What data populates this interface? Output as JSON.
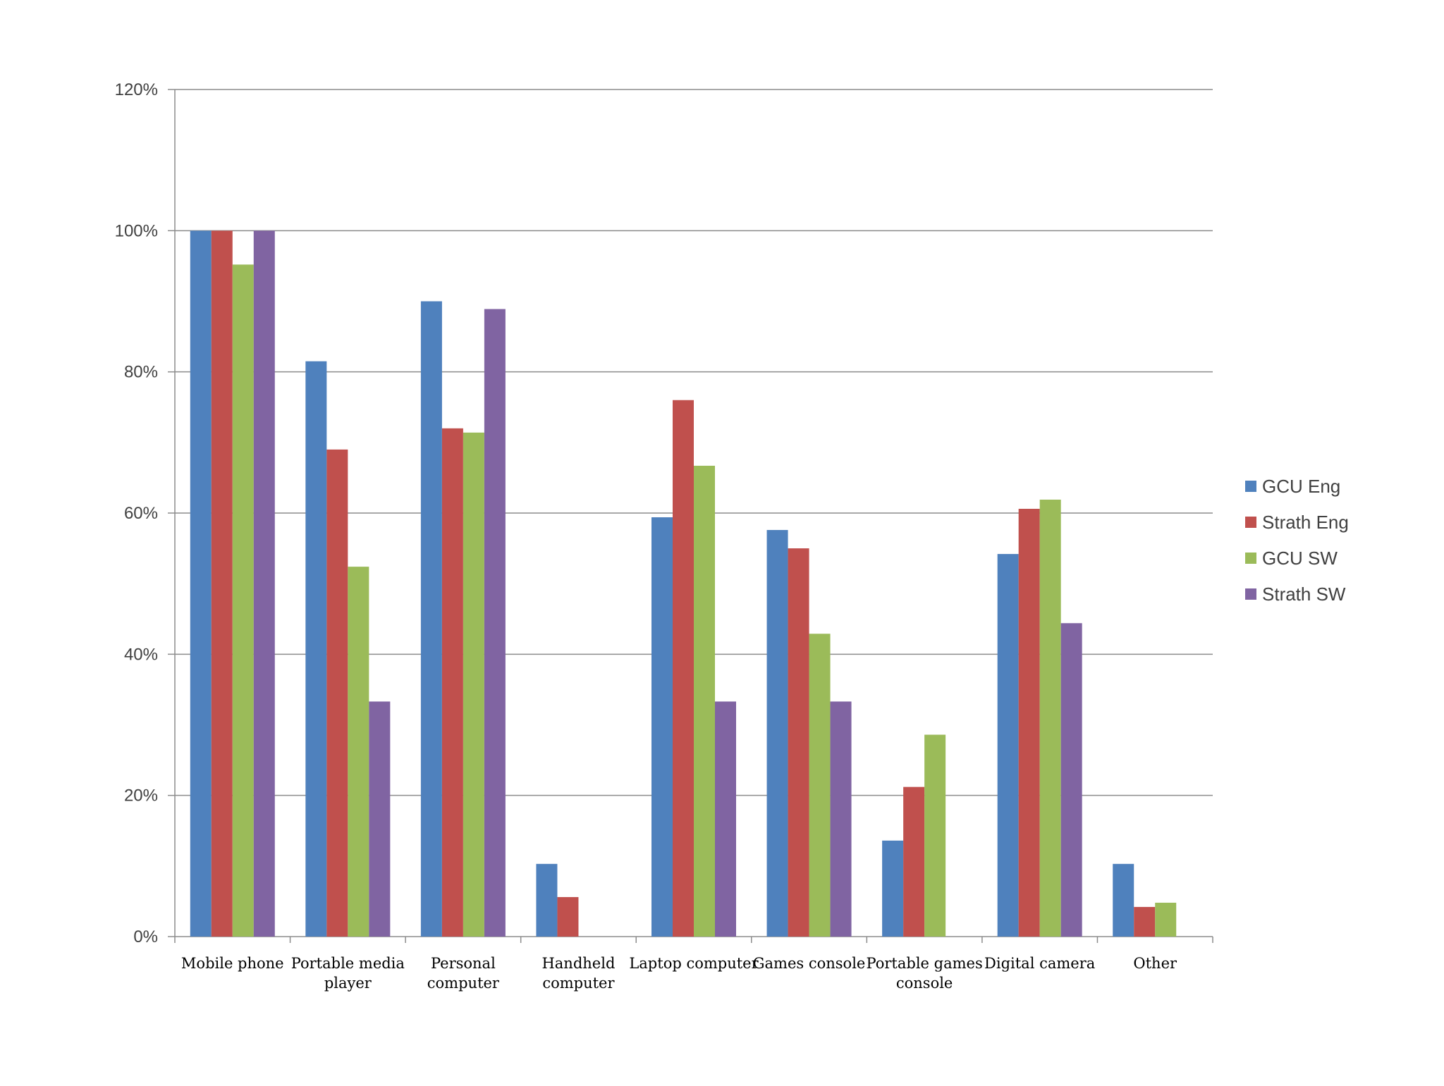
{
  "chart_data": {
    "type": "bar",
    "categories": [
      [
        "Mobile phone"
      ],
      [
        "Portable media",
        "player"
      ],
      [
        "Personal",
        "computer"
      ],
      [
        "Handheld",
        "computer"
      ],
      [
        "Laptop computer"
      ],
      [
        "Games console"
      ],
      [
        "Portable games",
        "console"
      ],
      [
        "Digital camera"
      ],
      [
        "Other"
      ]
    ],
    "series": [
      {
        "name": "GCU Eng",
        "color": "#4F81BD",
        "values": [
          100,
          81.5,
          90,
          10.3,
          59.4,
          57.6,
          13.6,
          54.2,
          10.3
        ]
      },
      {
        "name": "Strath Eng",
        "color": "#C0504D",
        "values": [
          100,
          69,
          72,
          5.6,
          76,
          55,
          21.2,
          60.6,
          4.2
        ]
      },
      {
        "name": "GCU SW",
        "color": "#9BBB59",
        "values": [
          95.2,
          52.4,
          71.4,
          0,
          66.7,
          42.9,
          28.6,
          61.9,
          4.8
        ]
      },
      {
        "name": "Strath SW",
        "color": "#8064A2",
        "values": [
          100,
          33.3,
          88.9,
          0,
          33.3,
          33.3,
          0,
          44.4,
          0
        ]
      }
    ],
    "y_ticks": [
      "0%",
      "20%",
      "40%",
      "60%",
      "80%",
      "100%",
      "120%"
    ],
    "ylim": [
      0,
      120
    ],
    "grid": true,
    "legend_position": "right"
  }
}
